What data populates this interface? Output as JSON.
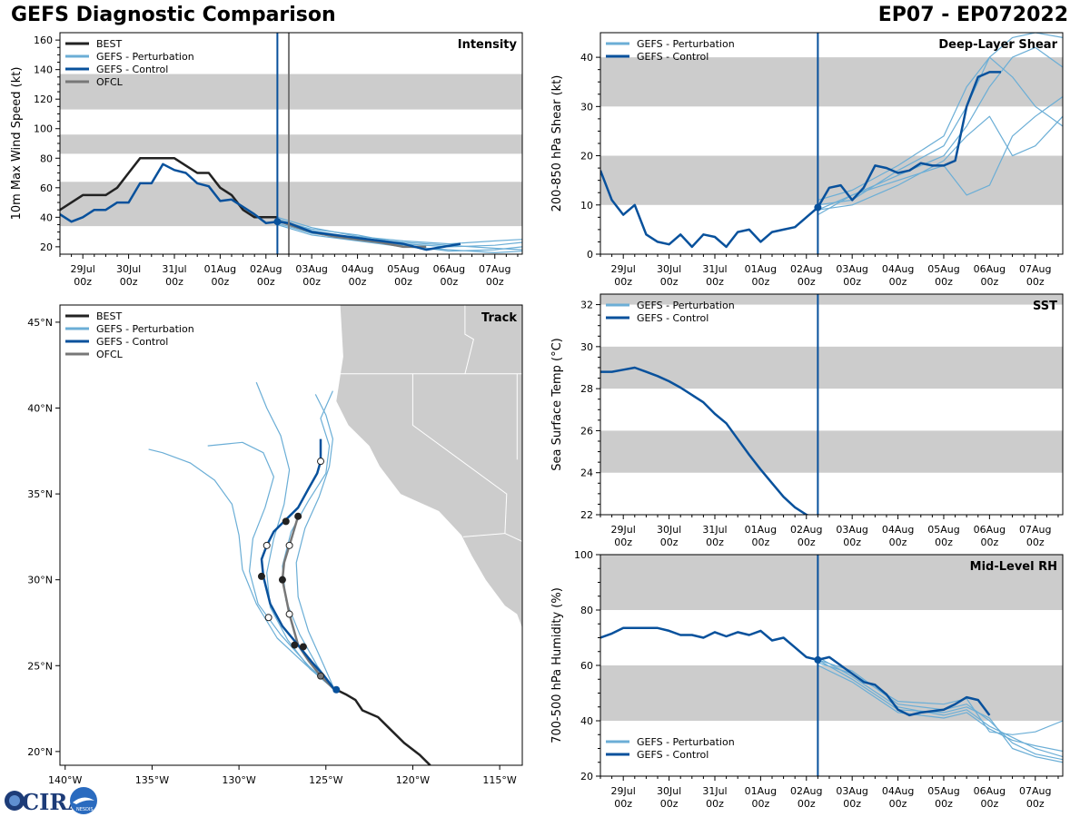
{
  "header": {
    "left": "GEFS Diagnostic Comparison",
    "right": "EP07 - EP072022"
  },
  "logo": {
    "text": "CIRA",
    "small": "NESDIS"
  },
  "colors": {
    "best": "#222222",
    "perturbation": "#6baed6",
    "control": "#08519c",
    "ofcl": "#777777",
    "band": "#cccccc",
    "land": "#cccccc"
  },
  "legend": {
    "best": "BEST",
    "perturbation": "GEFS - Perturbation",
    "control": "GEFS - Control",
    "ofcl": "OFCL"
  },
  "time_ticks": [
    "29Jul",
    "30Jul",
    "31Jul",
    "01Aug",
    "02Aug",
    "03Aug",
    "04Aug",
    "05Aug",
    "06Aug",
    "07Aug"
  ],
  "time_tick_sub": "00z",
  "chart_data": [
    {
      "id": "intensity",
      "type": "line",
      "title": "Intensity",
      "ylabel": "10m Max Wind Speed (kt)",
      "xlim": [
        -0.5,
        9.6
      ],
      "ylim": [
        15,
        165
      ],
      "yticks": [
        20,
        40,
        60,
        80,
        100,
        120,
        140,
        160
      ],
      "bands": [
        [
          34,
          64
        ],
        [
          83,
          96
        ],
        [
          113,
          137
        ]
      ],
      "init_line": 4.25,
      "ofcl_line": 4.5,
      "best": {
        "x": [
          -0.5,
          -0.25,
          0,
          0.25,
          0.5,
          0.75,
          1,
          1.25,
          1.5,
          1.75,
          2,
          2.25,
          2.5,
          2.75,
          3,
          3.25,
          3.5,
          3.75,
          4,
          4.25
        ],
        "y": [
          45,
          50,
          55,
          55,
          55,
          60,
          70,
          80,
          80,
          80,
          80,
          75,
          70,
          70,
          60,
          55,
          45,
          40,
          40,
          40
        ]
      },
      "control": {
        "x": [
          -0.5,
          -0.25,
          0,
          0.25,
          0.5,
          0.75,
          1,
          1.25,
          1.5,
          1.75,
          2,
          2.25,
          2.5,
          2.75,
          3,
          3.25,
          3.5,
          3.75,
          4,
          4.25,
          4.5,
          5,
          5.5,
          6,
          6.5,
          7,
          7.5,
          8.25
        ],
        "y": [
          42,
          37,
          40,
          45,
          45,
          50,
          50,
          63,
          63,
          76,
          72,
          70,
          63,
          61,
          51,
          52,
          47,
          42,
          36,
          37,
          36,
          30,
          28,
          26,
          24,
          22,
          18,
          22
        ]
      },
      "ofcl": {
        "x": [
          4.25,
          4.5,
          5,
          5.5,
          6,
          6.5,
          7,
          7.5
        ],
        "y": [
          38,
          35,
          30,
          27,
          25,
          23,
          20,
          20
        ]
      },
      "perturbations": [
        {
          "x": [
            4.25,
            5,
            6,
            7,
            8,
            9,
            9.6
          ],
          "y": [
            38,
            32,
            28,
            22,
            20,
            21,
            23
          ]
        },
        {
          "x": [
            4.25,
            5,
            6,
            7,
            8,
            9,
            9.6
          ],
          "y": [
            36,
            29,
            25,
            21,
            17,
            18,
            20
          ]
        },
        {
          "x": [
            4.25,
            5,
            6,
            7,
            8,
            9,
            9.6
          ],
          "y": [
            40,
            33,
            27,
            24,
            22,
            24,
            25
          ]
        },
        {
          "x": [
            4.25,
            5,
            6,
            7,
            8,
            9,
            9.6
          ],
          "y": [
            35,
            28,
            24,
            20,
            18,
            16,
            17
          ]
        },
        {
          "x": [
            4.25,
            5,
            6,
            7,
            8,
            9,
            9.6
          ],
          "y": [
            39,
            31,
            26,
            23,
            21,
            19,
            18
          ]
        }
      ],
      "markers": [
        {
          "x": 4.25,
          "y": 37
        }
      ]
    },
    {
      "id": "shear",
      "type": "line",
      "title": "Deep-Layer Shear",
      "ylabel": "200-850 hPa Shear (kt)",
      "xlim": [
        -0.5,
        9.6
      ],
      "ylim": [
        0,
        45
      ],
      "yticks": [
        0,
        10,
        20,
        30,
        40
      ],
      "bands": [
        [
          10,
          20
        ],
        [
          30,
          40
        ]
      ],
      "init_line": 4.25,
      "control": {
        "x": [
          -0.5,
          -0.25,
          0,
          0.25,
          0.5,
          0.75,
          1,
          1.25,
          1.5,
          1.75,
          2,
          2.25,
          2.5,
          2.75,
          3,
          3.25,
          3.5,
          3.75,
          4,
          4.25,
          4.5,
          4.75,
          5,
          5.25,
          5.5,
          5.75,
          6,
          6.25,
          6.5,
          6.75,
          7,
          7.25,
          7.5,
          7.75,
          8,
          8.25
        ],
        "y": [
          17,
          11,
          8,
          10,
          4,
          2.5,
          2,
          4,
          1.5,
          4,
          3.5,
          1.5,
          4.5,
          5,
          2.5,
          4.5,
          5,
          5.5,
          7.5,
          9.5,
          13.5,
          14,
          11,
          13.5,
          18,
          17.5,
          16.5,
          17,
          18.5,
          18,
          18,
          19,
          30,
          36,
          37,
          37
        ]
      },
      "perturbations": [
        {
          "x": [
            4.25,
            5,
            6,
            7,
            7.5,
            8,
            8.5,
            9,
            9.6
          ],
          "y": [
            9,
            12,
            16,
            20,
            26,
            34,
            40,
            42,
            38
          ]
        },
        {
          "x": [
            4.25,
            5,
            6,
            7,
            7.5,
            8,
            8.5,
            9,
            9.6
          ],
          "y": [
            10,
            11,
            17,
            22,
            30,
            40,
            44,
            45,
            44
          ]
        },
        {
          "x": [
            4.25,
            5,
            6,
            7,
            7.5,
            8,
            8.5,
            9,
            9.6
          ],
          "y": [
            8,
            12,
            15,
            18,
            12,
            14,
            24,
            28,
            32
          ]
        },
        {
          "x": [
            4.25,
            5,
            6,
            7,
            7.5,
            8,
            8.5,
            9,
            9.6
          ],
          "y": [
            11,
            13,
            18,
            24,
            34,
            40,
            36,
            30,
            26
          ]
        },
        {
          "x": [
            4.25,
            5,
            6,
            7,
            7.5,
            8,
            8.5,
            9,
            9.6
          ],
          "y": [
            9,
            10,
            14,
            19,
            24,
            28,
            20,
            22,
            28
          ]
        }
      ],
      "markers": [
        {
          "x": 4.25,
          "y": 9.5
        }
      ]
    },
    {
      "id": "sst",
      "type": "line",
      "title": "SST",
      "ylabel": "Sea Surface Temp (°C)",
      "xlim": [
        -0.5,
        9.6
      ],
      "ylim": [
        22,
        32.5
      ],
      "yticks": [
        22,
        24,
        26,
        28,
        30,
        32
      ],
      "bands": [
        [
          24,
          26
        ],
        [
          28,
          30
        ],
        [
          32,
          33
        ]
      ],
      "init_line": 4.25,
      "control": {
        "x": [
          -0.5,
          -0.25,
          0,
          0.25,
          0.5,
          0.75,
          1,
          1.25,
          1.5,
          1.75,
          2,
          2.25,
          2.5,
          2.75,
          3,
          3.25,
          3.5,
          3.75,
          4,
          4.25
        ],
        "y": [
          28.8,
          28.8,
          28.9,
          29.0,
          28.8,
          28.6,
          28.35,
          28.05,
          27.7,
          27.35,
          26.8,
          26.35,
          25.6,
          24.85,
          24.15,
          23.5,
          22.85,
          22.35,
          22.0,
          21.8
        ]
      },
      "perturbations": [],
      "markers": []
    },
    {
      "id": "rh",
      "type": "line",
      "title": "Mid-Level RH",
      "ylabel": "700-500 hPa Humidity (%)",
      "xlim": [
        -0.5,
        9.6
      ],
      "ylim": [
        20,
        100
      ],
      "yticks": [
        20,
        40,
        60,
        80,
        100
      ],
      "bands": [
        [
          40,
          60
        ],
        [
          80,
          100
        ]
      ],
      "init_line": 4.25,
      "control": {
        "x": [
          -0.5,
          -0.25,
          0,
          0.25,
          0.5,
          0.75,
          1,
          1.25,
          1.5,
          1.75,
          2,
          2.25,
          2.5,
          2.75,
          3,
          3.25,
          3.5,
          3.75,
          4,
          4.25,
          4.5,
          5,
          5.25,
          5.5,
          5.75,
          6,
          6.25,
          6.5,
          7,
          7.25,
          7.5,
          7.75,
          8
        ],
        "y": [
          70,
          71.5,
          73.5,
          73.5,
          73.5,
          73.5,
          72.5,
          71,
          71,
          70,
          72,
          70.5,
          72,
          71,
          72.5,
          69,
          70,
          66.5,
          63,
          62,
          63,
          57,
          54,
          53,
          49.5,
          44,
          42,
          43,
          44,
          46,
          48.5,
          47.5,
          42
        ]
      },
      "perturbations": [
        {
          "x": [
            4.25,
            5,
            6,
            7,
            7.5,
            8,
            8.5,
            9,
            9.6
          ],
          "y": [
            62,
            58,
            46,
            44,
            46,
            40,
            32,
            28,
            26
          ]
        },
        {
          "x": [
            4.25,
            5,
            6,
            7,
            7.5,
            8,
            8.5,
            9,
            9.6
          ],
          "y": [
            63,
            56,
            45,
            42,
            44,
            38,
            34,
            30,
            27
          ]
        },
        {
          "x": [
            4.25,
            5,
            6,
            7,
            7.5,
            8,
            8.5,
            9,
            9.6
          ],
          "y": [
            61,
            57,
            47,
            46,
            48,
            36,
            35,
            36,
            40
          ]
        },
        {
          "x": [
            4.25,
            5,
            6,
            7,
            7.5,
            8,
            8.5,
            9,
            9.6
          ],
          "y": [
            62,
            55,
            44,
            43,
            45,
            41,
            30,
            27,
            25
          ]
        },
        {
          "x": [
            4.25,
            5,
            6,
            7,
            7.5,
            8,
            8.5,
            9,
            9.6
          ],
          "y": [
            60,
            54,
            43,
            41,
            43,
            37,
            33,
            31,
            29
          ]
        }
      ],
      "markers": [
        {
          "x": 4.25,
          "y": 62
        }
      ]
    },
    {
      "id": "track",
      "type": "scatter",
      "title": "Track",
      "xlim": [
        -140.3,
        -113.7
      ],
      "ylim": [
        19.2,
        46.0
      ],
      "xticks": [
        -140,
        -135,
        -130,
        -125,
        -120,
        -115
      ],
      "xtick_labels": [
        "140°W",
        "135°W",
        "130°W",
        "125°W",
        "120°W",
        "115°W"
      ],
      "yticks": [
        20,
        25,
        30,
        35,
        40,
        45
      ],
      "ytick_labels": [
        "20°N",
        "25°N",
        "30°N",
        "35°N",
        "40°N",
        "45°N"
      ],
      "best": {
        "lon": [
          -119.0,
          -119.6,
          -120.5,
          -121.2,
          -122.0,
          -122.9,
          -123.3,
          -123.8,
          -124.4
        ],
        "lat": [
          19.2,
          19.8,
          20.5,
          21.2,
          22.0,
          22.4,
          23.0,
          23.3,
          23.6
        ]
      },
      "control": {
        "lon": [
          -124.5,
          -125.1,
          -125.8,
          -126.6,
          -127.5,
          -128.2,
          -128.6,
          -128.7,
          -128.4,
          -128.0,
          -127.4,
          -126.6,
          -126.0,
          -125.5,
          -125.3,
          -125.3
        ],
        "lat": [
          23.6,
          24.4,
          25.2,
          26.2,
          27.3,
          28.6,
          30.2,
          31.2,
          32.0,
          32.8,
          33.4,
          34.2,
          35.3,
          36.2,
          36.9,
          38.2
        ]
      },
      "control_points": [
        {
          "lon": -126.8,
          "lat": 26.2,
          "fill": "dark"
        },
        {
          "lon": -128.3,
          "lat": 27.8,
          "fill": "white"
        },
        {
          "lon": -128.7,
          "lat": 30.2,
          "fill": "dark"
        },
        {
          "lon": -128.4,
          "lat": 32.0,
          "fill": "white"
        },
        {
          "lon": -127.3,
          "lat": 33.4,
          "fill": "dark"
        },
        {
          "lon": -125.3,
          "lat": 36.9,
          "fill": "white"
        }
      ],
      "ofcl": {
        "lon": [
          -124.5,
          -125.3,
          -126.0,
          -126.6,
          -127.1,
          -127.3,
          -127.5,
          -127.4,
          -127.1,
          -126.6
        ],
        "lat": [
          23.6,
          24.4,
          25.3,
          26.2,
          28.0,
          29.0,
          30.0,
          31.0,
          32.0,
          33.7
        ]
      },
      "ofcl_points": [
        {
          "lon": -125.3,
          "lat": 24.4,
          "fill": "grey"
        },
        {
          "lon": -126.3,
          "lat": 26.1,
          "fill": "dark"
        },
        {
          "lon": -127.1,
          "lat": 28.0,
          "fill": "white"
        },
        {
          "lon": -127.5,
          "lat": 30.0,
          "fill": "dark"
        },
        {
          "lon": -127.1,
          "lat": 32.0,
          "fill": "white"
        },
        {
          "lon": -126.6,
          "lat": 33.7,
          "fill": "dark"
        }
      ],
      "perturbations": [
        {
          "lon": [
            -124.5,
            -126.0,
            -127.6,
            -128.9,
            -129.4,
            -129.2,
            -128.5,
            -128.0,
            -128.6,
            -129.8,
            -131.8
          ],
          "lat": [
            23.6,
            25.0,
            26.8,
            28.6,
            30.5,
            32.4,
            34.2,
            36.0,
            37.4,
            38.0,
            37.8
          ]
        },
        {
          "lon": [
            -124.5,
            -125.5,
            -126.5,
            -127.3,
            -127.5,
            -127.0,
            -126.0,
            -125.0,
            -124.8,
            -125.3,
            -124.6
          ],
          "lat": [
            23.6,
            25.0,
            26.8,
            28.8,
            30.8,
            32.8,
            34.6,
            36.2,
            37.8,
            39.4,
            41.0
          ]
        },
        {
          "lon": [
            -124.5,
            -125.9,
            -127.2,
            -128.2,
            -128.4,
            -128.0,
            -127.4,
            -127.1,
            -127.6,
            -128.4,
            -129.0
          ],
          "lat": [
            23.6,
            24.8,
            26.5,
            28.4,
            30.4,
            32.4,
            34.4,
            36.4,
            38.4,
            40.0,
            41.5
          ]
        },
        {
          "lon": [
            -124.5,
            -125.2,
            -126.0,
            -126.6,
            -126.7,
            -126.2,
            -125.4,
            -124.8,
            -124.6,
            -125.0,
            -125.6
          ],
          "lat": [
            23.6,
            25.2,
            27.0,
            29.0,
            31.0,
            33.0,
            34.8,
            36.6,
            38.2,
            39.6,
            40.8
          ]
        },
        {
          "lon": [
            -124.5,
            -126.1,
            -127.8,
            -129.0,
            -129.8,
            -130.0,
            -130.4,
            -131.4,
            -132.8,
            -134.4,
            -135.2
          ],
          "lat": [
            23.6,
            25.0,
            26.6,
            28.6,
            30.6,
            32.6,
            34.4,
            35.8,
            36.8,
            37.4,
            37.6
          ]
        }
      ]
    }
  ]
}
